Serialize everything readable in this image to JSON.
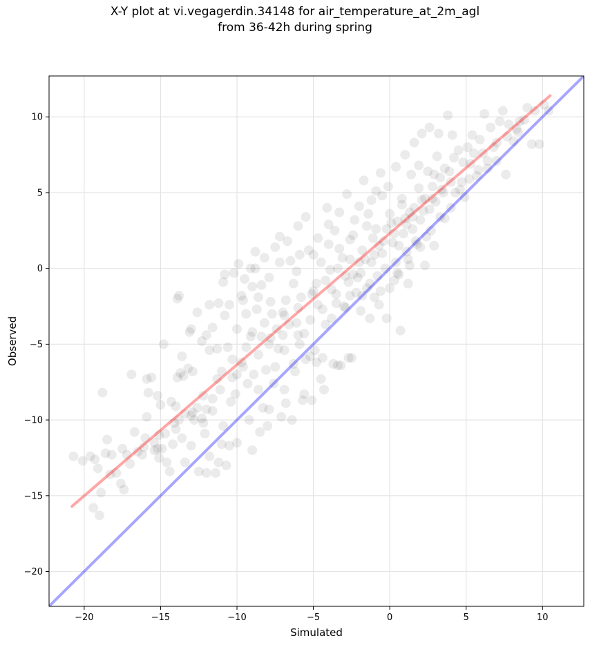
{
  "chart_data": {
    "type": "scatter",
    "title": "X-Y plot at vi.vegagerdin.34148 for air_temperature_at_2m_agl",
    "subtitle": "from 36-42h during spring",
    "xlabel": "Simulated",
    "ylabel": "Observed",
    "xlim": [
      -22.3,
      12.7
    ],
    "ylim": [
      -22.3,
      12.7
    ],
    "xticks": [
      -20,
      -15,
      -10,
      -5,
      0,
      5,
      10
    ],
    "yticks": [
      -20,
      -15,
      -10,
      -5,
      0,
      5,
      10
    ],
    "xtick_labels": [
      "−20",
      "−15",
      "−10",
      "−5",
      "0",
      "5",
      "10"
    ],
    "ytick_labels": [
      "−20",
      "−15",
      "−10",
      "−5",
      "0",
      "5",
      "10"
    ],
    "grid": true,
    "point_color": "#000000",
    "point_alpha": 0.08,
    "fit_line": {
      "color": "#ff0000",
      "x": [
        -20.8,
        10.5
      ],
      "y": [
        -15.7,
        11.4
      ]
    },
    "identity_line": {
      "color": "#0000ff",
      "x": [
        -22.3,
        12.7
      ],
      "y": [
        -22.3,
        12.7
      ]
    },
    "points": [
      [
        -20.7,
        -12.4
      ],
      [
        -20.1,
        -12.7
      ],
      [
        -19.6,
        -12.4
      ],
      [
        -19.3,
        -12.6
      ],
      [
        -19.1,
        -13.2
      ],
      [
        -18.9,
        -14.8
      ],
      [
        -19.4,
        -15.8
      ],
      [
        -19.0,
        -16.3
      ],
      [
        -18.6,
        -12.2
      ],
      [
        -18.5,
        -11.3
      ],
      [
        -18.8,
        -8.2
      ],
      [
        -17.9,
        -13.5
      ],
      [
        -17.4,
        -14.6
      ],
      [
        -17.6,
        -14.2
      ],
      [
        -16.9,
        -7.0
      ],
      [
        -16.5,
        -12.1
      ],
      [
        -16.2,
        -12.3
      ],
      [
        -15.9,
        -7.3
      ],
      [
        -15.6,
        -7.2
      ],
      [
        -15.8,
        -8.2
      ],
      [
        -15.4,
        -11.5
      ],
      [
        -15.2,
        -11.9
      ],
      [
        -15.1,
        -12.5
      ],
      [
        -14.7,
        -10.9
      ],
      [
        -15.2,
        -8.4
      ],
      [
        -15.0,
        -9.0
      ],
      [
        -14.8,
        -5.0
      ],
      [
        -14.6,
        -12.8
      ],
      [
        -14.4,
        -13.4
      ],
      [
        -14.2,
        -11.6
      ],
      [
        -14.0,
        -10.6
      ],
      [
        -13.8,
        -10.0
      ],
      [
        -13.9,
        -7.2
      ],
      [
        -13.7,
        -6.9
      ],
      [
        -13.6,
        -5.8
      ],
      [
        -13.5,
        -7.1
      ],
      [
        -13.2,
        -6.6
      ],
      [
        -13.0,
        -4.0
      ],
      [
        -12.9,
        -9.5
      ],
      [
        -12.6,
        -9.2
      ],
      [
        -12.3,
        -9.9
      ],
      [
        -12.2,
        -10.2
      ],
      [
        -12.0,
        -4.4
      ],
      [
        -11.8,
        -5.4
      ],
      [
        -11.6,
        -8.6
      ],
      [
        -11.4,
        -13.5
      ],
      [
        -11.2,
        -12.8
      ],
      [
        -11.0,
        -11.6
      ],
      [
        -10.7,
        -13.0
      ],
      [
        -13.8,
        -1.8
      ],
      [
        -13.9,
        -2.0
      ],
      [
        -11.6,
        -3.9
      ],
      [
        -11.2,
        -2.3
      ],
      [
        -10.9,
        -0.9
      ],
      [
        -10.8,
        -0.4
      ],
      [
        -10.5,
        -2.4
      ],
      [
        -10.3,
        -6.0
      ],
      [
        -10.1,
        -8.3
      ],
      [
        -9.9,
        0.3
      ],
      [
        -9.7,
        -1.8
      ],
      [
        -9.5,
        -0.7
      ],
      [
        -9.4,
        -3.0
      ],
      [
        -9.1,
        0.0
      ],
      [
        -9.0,
        -4.2
      ],
      [
        -8.8,
        1.1
      ],
      [
        -8.6,
        -1.9
      ],
      [
        -8.3,
        -9.2
      ],
      [
        -8.2,
        0.7
      ],
      [
        -8.0,
        -10.4
      ],
      [
        -7.8,
        -2.2
      ],
      [
        -7.5,
        1.4
      ],
      [
        -7.3,
        -5.3
      ],
      [
        -7.2,
        2.1
      ],
      [
        -7.0,
        -2.9
      ],
      [
        -6.8,
        -8.9
      ],
      [
        -6.7,
        1.8
      ],
      [
        -6.5,
        0.5
      ],
      [
        -6.3,
        -1.0
      ],
      [
        -6.1,
        -3.6
      ],
      [
        -6.0,
        2.8
      ],
      [
        -5.9,
        0.9
      ],
      [
        -5.7,
        -8.7
      ],
      [
        -5.5,
        3.4
      ],
      [
        -5.3,
        1.2
      ],
      [
        -5.2,
        -5.8
      ],
      [
        -5.0,
        -1.5
      ],
      [
        -4.8,
        -6.2
      ],
      [
        -4.7,
        2.0
      ],
      [
        -4.5,
        0.4
      ],
      [
        -4.3,
        -8.0
      ],
      [
        -4.1,
        4.0
      ],
      [
        -4.0,
        1.6
      ],
      [
        -3.8,
        -3.3
      ],
      [
        -3.6,
        2.5
      ],
      [
        -3.4,
        -6.4
      ],
      [
        -3.3,
        3.7
      ],
      [
        -3.1,
        0.7
      ],
      [
        -2.9,
        -2.6
      ],
      [
        -2.8,
        4.9
      ],
      [
        -2.6,
        1.9
      ],
      [
        -2.5,
        -5.9
      ],
      [
        -2.3,
        3.2
      ],
      [
        -2.1,
        -0.6
      ],
      [
        -2.0,
        4.1
      ],
      [
        -1.8,
        -1.8
      ],
      [
        -1.7,
        5.8
      ],
      [
        -1.5,
        2.8
      ],
      [
        -1.3,
        -3.3
      ],
      [
        -1.2,
        4.5
      ],
      [
        -1.0,
        0.9
      ],
      [
        -0.9,
        5.1
      ],
      [
        -0.7,
        -2.4
      ],
      [
        -0.6,
        6.3
      ],
      [
        -0.4,
        1.8
      ],
      [
        -0.2,
        -3.3
      ],
      [
        -0.1,
        5.4
      ],
      [
        0.1,
        3.0
      ],
      [
        0.3,
        -0.8
      ],
      [
        0.4,
        6.7
      ],
      [
        0.6,
        1.5
      ],
      [
        0.7,
        -4.1
      ],
      [
        0.8,
        4.6
      ],
      [
        1.0,
        7.5
      ],
      [
        1.1,
        2.9
      ],
      [
        1.2,
        -1.0
      ],
      [
        1.4,
        6.2
      ],
      [
        1.5,
        3.4
      ],
      [
        1.6,
        8.3
      ],
      [
        1.8,
        1.6
      ],
      [
        1.9,
        5.3
      ],
      [
        2.1,
        8.9
      ],
      [
        2.2,
        3.8
      ],
      [
        2.3,
        0.2
      ],
      [
        2.5,
        6.4
      ],
      [
        2.6,
        9.3
      ],
      [
        2.8,
        4.6
      ],
      [
        2.9,
        1.5
      ],
      [
        3.1,
        7.4
      ],
      [
        3.2,
        8.9
      ],
      [
        3.4,
        5.2
      ],
      [
        3.6,
        3.3
      ],
      [
        3.8,
        10.1
      ],
      [
        3.9,
        6.4
      ],
      [
        4.1,
        8.8
      ],
      [
        4.3,
        5.0
      ],
      [
        4.5,
        7.8
      ],
      [
        4.7,
        5.7
      ],
      [
        4.9,
        4.7
      ],
      [
        5.1,
        8.0
      ],
      [
        5.3,
        6.9
      ],
      [
        5.5,
        7.6
      ],
      [
        5.7,
        6.1
      ],
      [
        5.9,
        8.5
      ],
      [
        6.1,
        7.6
      ],
      [
        6.2,
        10.2
      ],
      [
        6.4,
        6.6
      ],
      [
        6.6,
        9.3
      ],
      [
        6.8,
        8.0
      ],
      [
        7.0,
        7.1
      ],
      [
        7.2,
        9.7
      ],
      [
        7.4,
        10.4
      ],
      [
        7.6,
        6.2
      ],
      [
        7.8,
        9.5
      ],
      [
        8.1,
        8.4
      ],
      [
        8.3,
        9.2
      ],
      [
        8.5,
        9.7
      ],
      [
        8.8,
        9.8
      ],
      [
        9.0,
        10.6
      ],
      [
        9.3,
        8.2
      ],
      [
        9.5,
        10.4
      ],
      [
        9.8,
        8.2
      ],
      [
        10.1,
        10.8
      ],
      [
        10.4,
        10.4
      ],
      [
        -18.2,
        -12.3
      ],
      [
        -17.5,
        -11.9
      ],
      [
        -17.0,
        -12.9
      ],
      [
        -16.0,
        -11.2
      ],
      [
        -15.4,
        -12.0
      ],
      [
        -14.9,
        -11.9
      ],
      [
        -13.4,
        -12.8
      ],
      [
        -13.0,
        -11.7
      ],
      [
        -12.5,
        -13.4
      ],
      [
        -12.0,
        -13.5
      ],
      [
        -11.8,
        -12.4
      ],
      [
        -10.5,
        -11.7
      ],
      [
        -9.2,
        -10.0
      ],
      [
        -8.5,
        -10.8
      ],
      [
        -7.9,
        -9.3
      ],
      [
        -7.1,
        -9.8
      ],
      [
        -6.9,
        -8.0
      ],
      [
        -6.4,
        -10.0
      ],
      [
        -5.6,
        -8.3
      ],
      [
        -5.1,
        -8.7
      ],
      [
        -4.5,
        -7.3
      ],
      [
        -3.7,
        -6.3
      ],
      [
        -3.2,
        -6.4
      ],
      [
        -2.7,
        -5.9
      ],
      [
        -8.8,
        0.0
      ],
      [
        -7.9,
        -0.6
      ],
      [
        -7.2,
        0.4
      ],
      [
        -8.4,
        -1.1
      ],
      [
        -9.0,
        -1.2
      ],
      [
        -10.2,
        -0.3
      ],
      [
        -11.8,
        -2.4
      ],
      [
        -12.6,
        -2.9
      ],
      [
        -13.1,
        -4.2
      ],
      [
        -12.3,
        -4.8
      ],
      [
        -12.9,
        -6.8
      ],
      [
        -11.3,
        -5.3
      ],
      [
        -10.6,
        -5.2
      ],
      [
        -9.7,
        -6.2
      ],
      [
        -8.9,
        -7.0
      ],
      [
        -8.1,
        -6.7
      ],
      [
        -7.5,
        -6.5
      ],
      [
        -6.2,
        -6.8
      ],
      [
        -5.5,
        -6.0
      ],
      [
        -4.9,
        -5.4
      ],
      [
        -4.4,
        -5.9
      ],
      [
        -6.6,
        -3.7
      ],
      [
        -7.4,
        -4.0
      ],
      [
        -8.2,
        -3.6
      ],
      [
        -9.1,
        -4.5
      ],
      [
        -10.0,
        -4.0
      ],
      [
        -10.8,
        -3.1
      ],
      [
        -9.6,
        -2.1
      ],
      [
        -8.7,
        -2.7
      ],
      [
        -7.7,
        -3.0
      ],
      [
        -6.8,
        -2.1
      ],
      [
        -5.8,
        -1.9
      ],
      [
        -4.8,
        -1.0
      ],
      [
        -3.9,
        -0.1
      ],
      [
        -3.5,
        -1.7
      ],
      [
        -2.7,
        -0.9
      ],
      [
        -1.9,
        -0.3
      ],
      [
        -1.2,
        0.4
      ],
      [
        -0.5,
        1.0
      ],
      [
        0.2,
        1.7
      ],
      [
        0.9,
        2.3
      ],
      [
        1.5,
        2.6
      ],
      [
        2.0,
        3.2
      ],
      [
        2.6,
        3.9
      ],
      [
        3.0,
        4.4
      ],
      [
        3.5,
        5.0
      ],
      [
        4.0,
        5.7
      ],
      [
        -5.6,
        -4.3
      ],
      [
        -4.2,
        -3.7
      ],
      [
        -3.0,
        -2.5
      ],
      [
        -2.2,
        -1.6
      ],
      [
        -1.5,
        -1.3
      ],
      [
        -0.8,
        -0.5
      ],
      [
        -0.3,
        0.0
      ],
      [
        0.4,
        0.4
      ],
      [
        1.1,
        1.1
      ],
      [
        1.7,
        1.8
      ],
      [
        2.4,
        2.1
      ],
      [
        -1.9,
        -2.8
      ],
      [
        -1.0,
        -1.9
      ],
      [
        0.0,
        -1.3
      ],
      [
        0.6,
        -0.4
      ],
      [
        1.3,
        0.2
      ],
      [
        -2.4,
        -0.4
      ],
      [
        -1.6,
        0.6
      ],
      [
        -0.7,
        1.5
      ],
      [
        0.3,
        2.3
      ],
      [
        1.0,
        3.3
      ],
      [
        1.6,
        4.0
      ],
      [
        2.3,
        4.6
      ],
      [
        2.8,
        5.4
      ],
      [
        3.3,
        6.0
      ],
      [
        -4.7,
        -2.4
      ],
      [
        -3.8,
        -1.4
      ],
      [
        -2.9,
        -0.5
      ],
      [
        -2.0,
        0.4
      ],
      [
        -0.9,
        2.6
      ],
      [
        0.0,
        3.6
      ],
      [
        0.8,
        4.2
      ],
      [
        1.9,
        6.8
      ],
      [
        -3.3,
        1.3
      ],
      [
        -2.4,
        2.2
      ],
      [
        -1.4,
        3.6
      ],
      [
        -0.5,
        4.8
      ],
      [
        -6.1,
        -0.2
      ],
      [
        -5.0,
        0.9
      ],
      [
        -4.0,
        2.9
      ],
      [
        -5.9,
        -5.0
      ],
      [
        -6.9,
        -5.4
      ],
      [
        -7.9,
        -5.0
      ],
      [
        -9.3,
        -7.6
      ],
      [
        -10.4,
        -8.8
      ],
      [
        -11.1,
        -8.0
      ],
      [
        -12.2,
        -8.4
      ],
      [
        -13.4,
        -9.6
      ],
      [
        -14.3,
        -8.8
      ],
      [
        -15.9,
        -9.8
      ],
      [
        -16.7,
        -10.8
      ],
      [
        -13.6,
        -11.2
      ],
      [
        -12.1,
        -10.9
      ],
      [
        -10.9,
        -10.4
      ],
      [
        -10.0,
        -11.5
      ],
      [
        -9.0,
        -12.0
      ],
      [
        -11.6,
        -9.4
      ],
      [
        -12.8,
        -10.0
      ],
      [
        -14.0,
        -9.1
      ],
      [
        -11.0,
        -6.8
      ],
      [
        -10.0,
        -7.0
      ],
      [
        -8.6,
        -8.0
      ],
      [
        -7.6,
        -7.6
      ],
      [
        -6.3,
        -6.3
      ],
      [
        -9.4,
        -5.2
      ],
      [
        -8.4,
        -4.5
      ],
      [
        -7.0,
        -4.4
      ],
      [
        -6.0,
        -4.4
      ],
      [
        -5.2,
        -3.4
      ],
      [
        -4.4,
        -2.7
      ],
      [
        -3.5,
        -2.3
      ],
      [
        -2.6,
        -1.8
      ],
      [
        -1.3,
        -1.0
      ],
      [
        -0.6,
        -1.5
      ],
      [
        0.5,
        -0.3
      ],
      [
        1.2,
        0.6
      ],
      [
        2.0,
        1.4
      ],
      [
        2.7,
        2.5
      ],
      [
        3.3,
        3.4
      ],
      [
        4.0,
        4.0
      ],
      [
        4.6,
        5.2
      ],
      [
        5.2,
        5.9
      ],
      [
        5.8,
        6.5
      ],
      [
        6.4,
        7.1
      ],
      [
        7.0,
        8.3
      ],
      [
        7.7,
        8.7
      ],
      [
        8.4,
        9.0
      ],
      [
        -0.2,
        2.6
      ],
      [
        0.5,
        3.1
      ],
      [
        1.3,
        3.7
      ],
      [
        2.1,
        4.5
      ],
      [
        2.9,
        6.2
      ],
      [
        3.6,
        6.6
      ],
      [
        4.2,
        7.3
      ],
      [
        4.8,
        7.0
      ],
      [
        5.4,
        8.8
      ],
      [
        -1.1,
        2.0
      ],
      [
        -1.8,
        1.2
      ],
      [
        -2.6,
        0.6
      ],
      [
        -3.4,
        0.0
      ],
      [
        -4.2,
        -0.8
      ],
      [
        -5.1,
        -1.7
      ],
      [
        -6.0,
        -2.6
      ],
      [
        -6.9,
        -3.1
      ],
      [
        -7.8,
        -4.6
      ],
      [
        -8.6,
        -5.7
      ],
      [
        -9.6,
        -6.5
      ],
      [
        -10.3,
        -7.2
      ],
      [
        -11.3,
        -7.3
      ],
      [
        -12.0,
        -9.3
      ],
      [
        -13.0,
        -9.7
      ],
      [
        -14.1,
        -10.2
      ],
      [
        -15.1,
        -11.0
      ],
      [
        -16.1,
        -11.8
      ],
      [
        -17.2,
        -12.3
      ],
      [
        -18.3,
        -13.6
      ]
    ]
  }
}
